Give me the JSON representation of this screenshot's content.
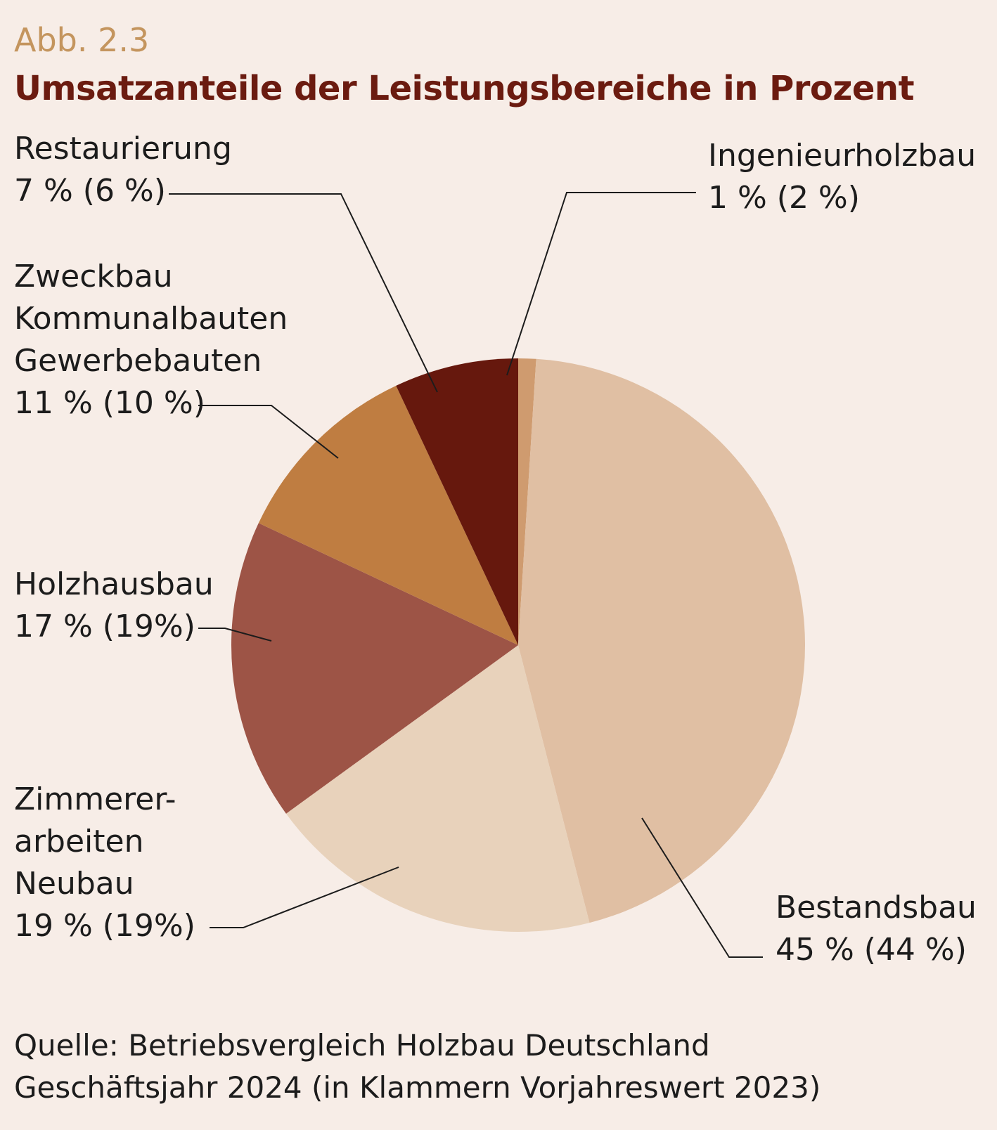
{
  "figure_number": "Abb. 2.3",
  "title": "Umsatzanteile der Leistungsbereiche in Prozent",
  "source": {
    "line1": "Quelle: Betriebsvergleich Holzbau Deutschland",
    "line2": "Geschäftsjahr 2024 (in Klammern Vorjahreswert 2023)"
  },
  "labels": {
    "ingenieurholzbau": {
      "name": "Ingenieurholzbau",
      "value": "1 % (2 %)"
    },
    "bestandsbau": {
      "name": "Bestandsbau",
      "value": "45 % (44 %)"
    },
    "zimmerer": {
      "name1": "Zimmerer-",
      "name2": "arbeiten",
      "name3": "Neubau",
      "value": "19 % (19%)"
    },
    "holzhausbau": {
      "name": "Holzhausbau",
      "value": "17 % (19%)"
    },
    "zweckbau": {
      "name1": "Zweckbau",
      "name2": "Kommunalbauten",
      "name3": "Gewerbebauten",
      "value": "11 % (10 %)"
    },
    "restaurierung": {
      "name": "Restaurierung",
      "value": "7 % (6 %)"
    }
  },
  "chart_data": {
    "type": "pie",
    "title": "Umsatzanteile der Leistungsbereiche in Prozent",
    "start_angle_deg": 0,
    "direction": "clockwise",
    "slices": [
      {
        "name": "Ingenieurholzbau",
        "value": 1,
        "previous": 2,
        "color": "#cf9b6f"
      },
      {
        "name": "Bestandsbau",
        "value": 45,
        "previous": 44,
        "color": "#e0bfa3"
      },
      {
        "name": "Zimmererarbeiten Neubau",
        "value": 19,
        "previous": 19,
        "color": "#e8d2bb"
      },
      {
        "name": "Holzhausbau",
        "value": 17,
        "previous": 19,
        "color": "#9d5446"
      },
      {
        "name": "Zweckbau Kommunalbauten Gewerbebauten",
        "value": 11,
        "previous": 10,
        "color": "#bf7d41"
      },
      {
        "name": "Restaurierung",
        "value": 7,
        "previous": 6,
        "color": "#66180d"
      }
    ]
  }
}
